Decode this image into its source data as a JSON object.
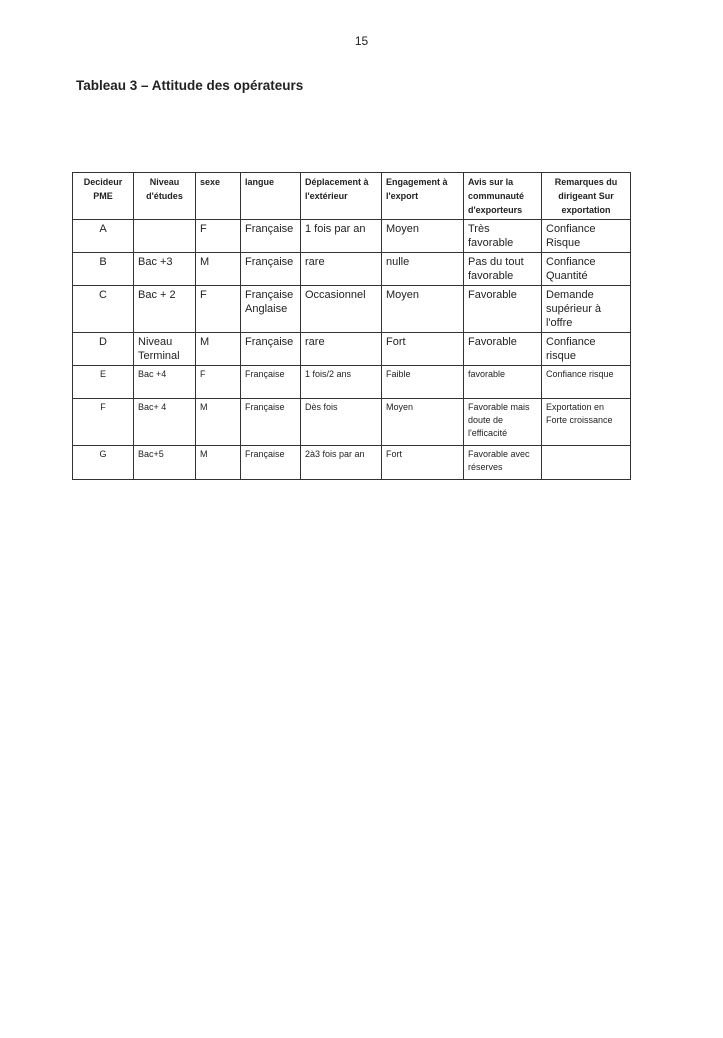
{
  "page_number": "15",
  "title": "Tableau 3 – Attitude des opérateurs",
  "table": {
    "headers": [
      "Decideur PME",
      "Niveau d'études",
      "sexe",
      "langue",
      "Déplacement à l'extérieur",
      "Engagement à l'export",
      "Avis sur la communauté d'exporteurs",
      "Remarques du dirigeant Sur exportation"
    ],
    "rows": [
      [
        "A",
        "",
        "F",
        "Française",
        "1 fois par an",
        "Moyen",
        "Très favorable",
        "Confiance Risque"
      ],
      [
        "B",
        "Bac +3",
        "M",
        "Française",
        "rare",
        "nulle",
        "Pas du tout favorable",
        "Confiance Quantité"
      ],
      [
        "C",
        "Bac + 2",
        "F",
        "Française Anglaise",
        "Occasionnel",
        "Moyen",
        "Favorable",
        "Demande supérieur à l'offre"
      ],
      [
        "D",
        "Niveau Terminal",
        "M",
        "Française",
        "rare",
        "Fort",
        "Favorable",
        "Confiance risque"
      ],
      [
        "E",
        "Bac +4",
        "F",
        "Française",
        "1 fois/2 ans",
        "Faible",
        "favorable",
        "Confiance risque"
      ],
      [
        "F",
        "Bac+ 4",
        "M",
        "Française",
        "Dès fois",
        "Moyen",
        "Favorable mais doute de l'efficacité",
        "Exportation en Forte croissance"
      ],
      [
        "G",
        "Bac+5",
        "M",
        "Française",
        "2à3 fois par an",
        "Fort",
        "Favorable avec réserves",
        ""
      ]
    ]
  }
}
